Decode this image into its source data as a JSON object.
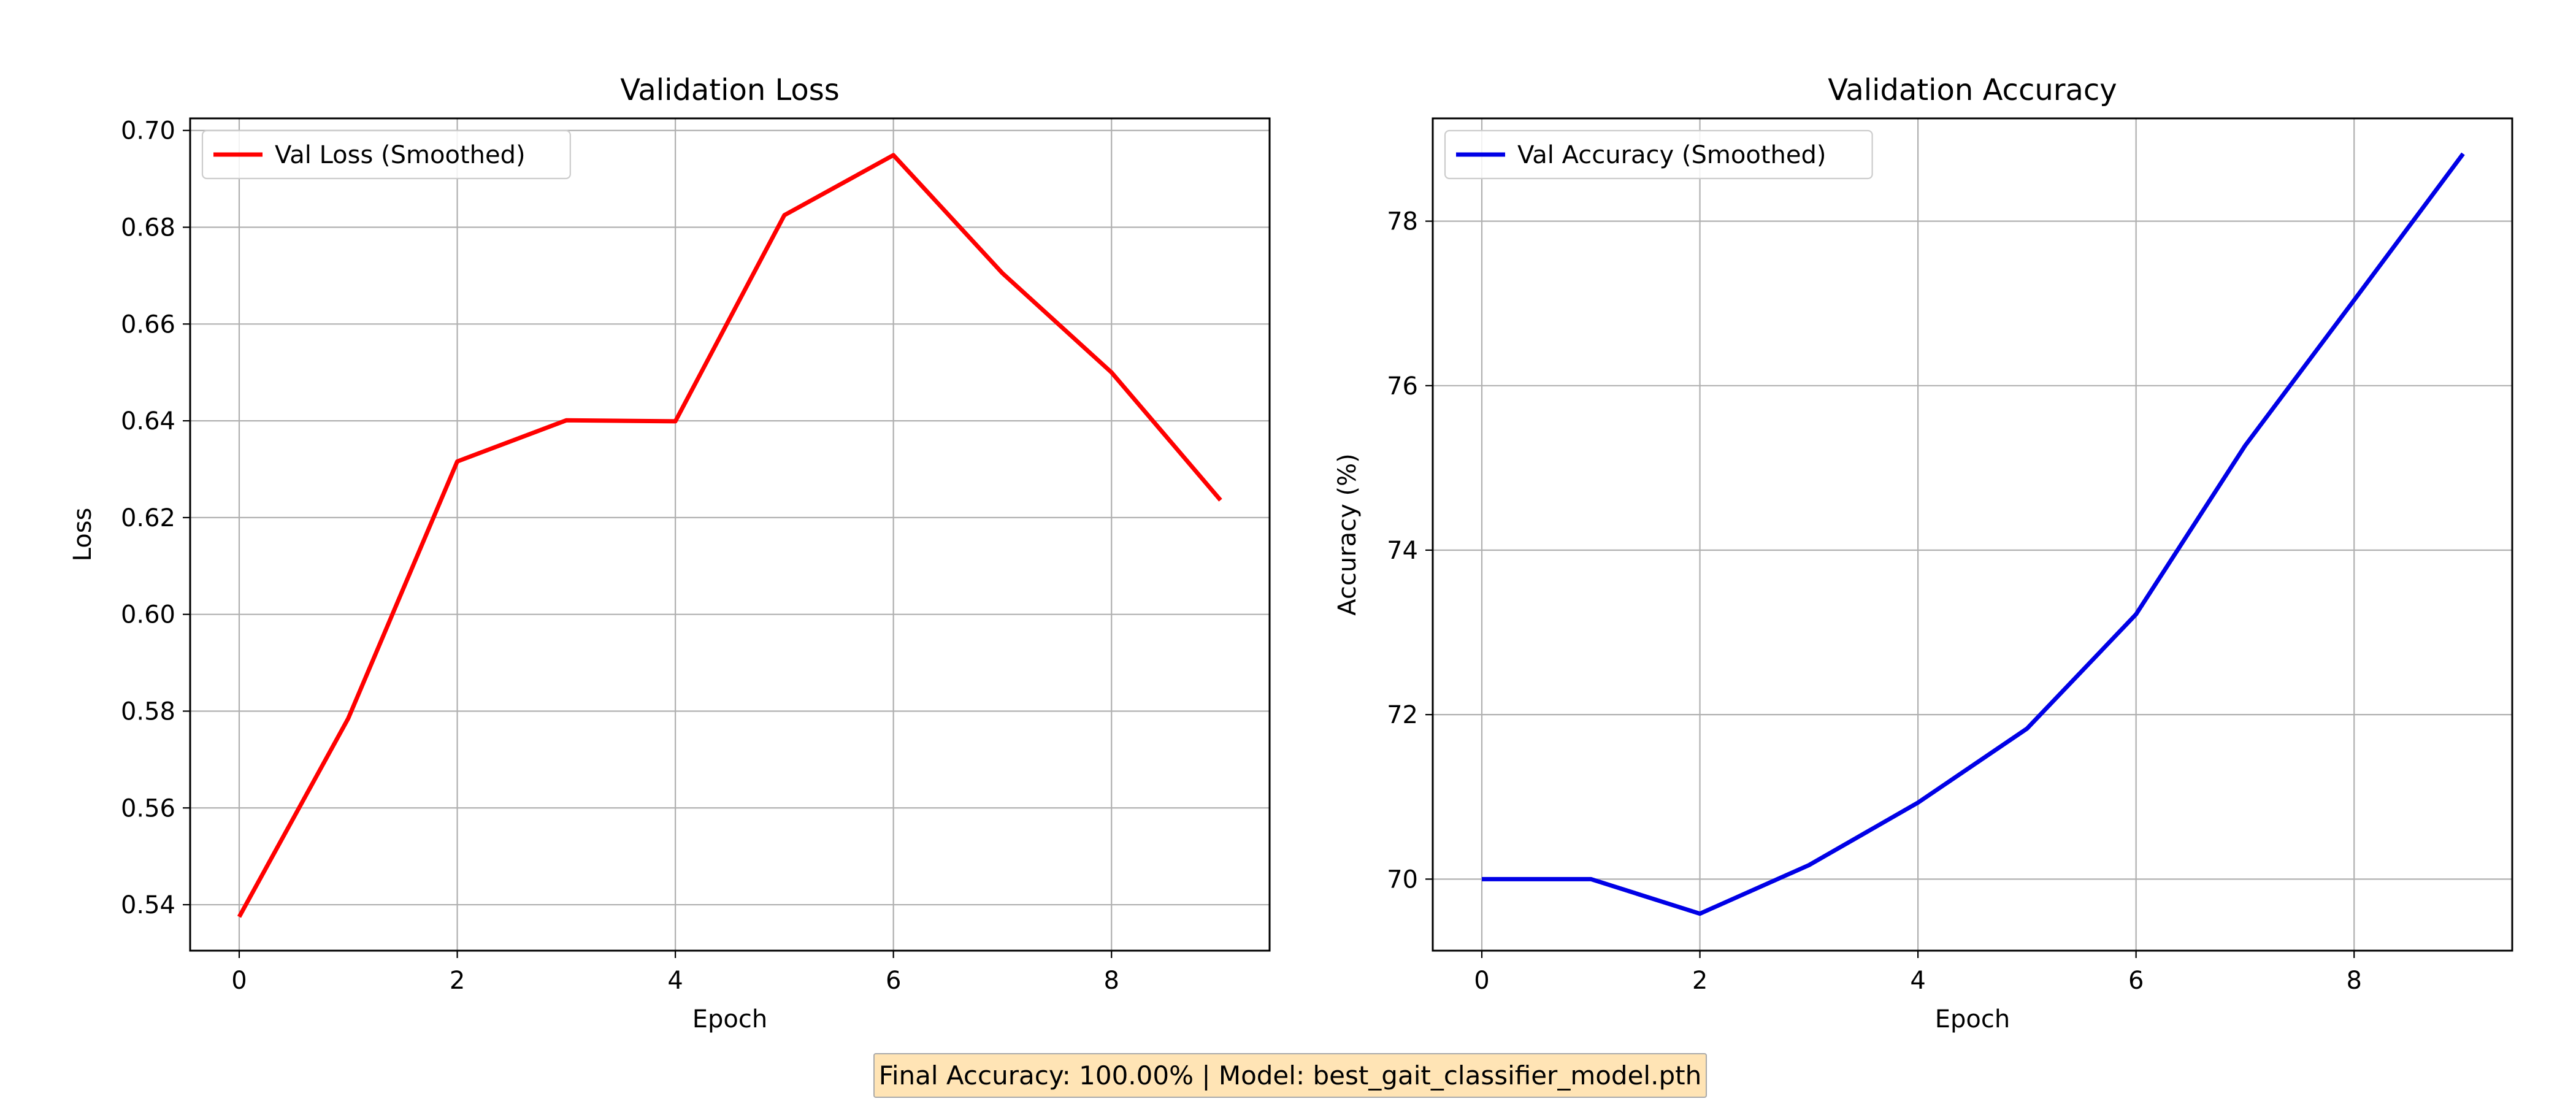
{
  "colors": {
    "loss_line": "#ff0000",
    "acc_line": "#0000e6",
    "grid": "#b0b0b0",
    "footer_bg": "#ffe4b5",
    "footer_border": "#a9a9a9"
  },
  "footer": {
    "text": "Final Accuracy: 100.00% | Model: best_gait_classifier_model.pth"
  },
  "chart_data": [
    {
      "type": "line",
      "title": "Validation Loss",
      "xlabel": "Epoch",
      "ylabel": "Loss",
      "xlim": [
        -0.45,
        9.45
      ],
      "ylim": [
        0.5305,
        0.7025
      ],
      "xticks": [
        0,
        2,
        4,
        6,
        8
      ],
      "yticks": [
        0.54,
        0.56,
        0.58,
        0.6,
        0.62,
        0.64,
        0.66,
        0.68,
        0.7
      ],
      "ytick_labels": [
        "0.54",
        "0.56",
        "0.58",
        "0.60",
        "0.62",
        "0.64",
        "0.66",
        "0.68",
        "0.70"
      ],
      "grid": true,
      "legend": "upper-left",
      "series": [
        {
          "name": "Val Loss (Smoothed)",
          "color": "#ff0000",
          "x": [
            0,
            1,
            2,
            3,
            4,
            5,
            6,
            7,
            8,
            9
          ],
          "y": [
            0.5375,
            0.5785,
            0.6316,
            0.6401,
            0.6399,
            0.6825,
            0.6949,
            0.6705,
            0.65,
            0.6236
          ]
        }
      ]
    },
    {
      "type": "line",
      "title": "Validation Accuracy",
      "xlabel": "Epoch",
      "ylabel": "Accuracy (%)",
      "xlim": [
        -0.45,
        9.45
      ],
      "ylim": [
        69.13,
        79.25
      ],
      "xticks": [
        0,
        2,
        4,
        6,
        8
      ],
      "yticks": [
        70,
        72,
        74,
        76,
        78
      ],
      "ytick_labels": [
        "70",
        "72",
        "74",
        "76",
        "78"
      ],
      "grid": true,
      "legend": "upper-left",
      "series": [
        {
          "name": "Val Accuracy (Smoothed)",
          "color": "#0000e6",
          "x": [
            0,
            1,
            2,
            3,
            4,
            5,
            6,
            7,
            8,
            9
          ],
          "y": [
            70.0,
            70.0,
            69.58,
            70.17,
            70.93,
            71.83,
            73.22,
            75.27,
            77.04,
            78.82
          ]
        }
      ]
    }
  ]
}
